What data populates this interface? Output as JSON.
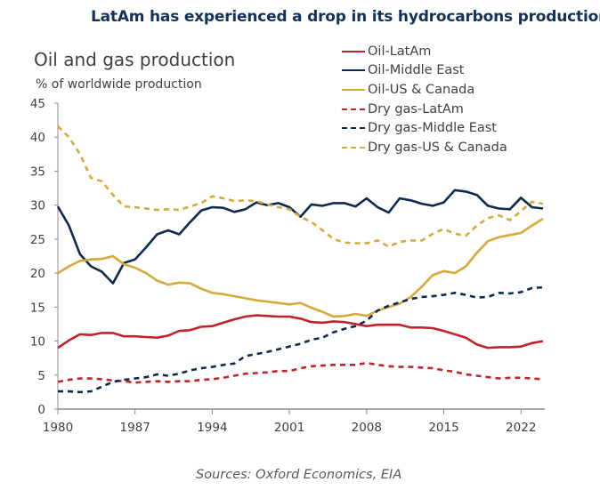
{
  "headline": "LatAm has experienced a drop in its hydrocarbons production",
  "source": "Sources: Oxford Economics, EIA",
  "chart_data": {
    "type": "line",
    "title": "Oil and gas production",
    "ylabel": "% of worldwide production",
    "xlabel": "",
    "xlim": [
      1980,
      2024
    ],
    "ylim": [
      0,
      45
    ],
    "x_ticks": [
      "1980",
      "1987",
      "1994",
      "2001",
      "2008",
      "2015",
      "2022"
    ],
    "y_ticks": [
      "0",
      "5",
      "10",
      "15",
      "20",
      "25",
      "30",
      "35",
      "40",
      "45"
    ],
    "grid": false,
    "legend_position": "top-right",
    "x_start": 1980,
    "series": [
      {
        "name": "Oil-LatAm",
        "color": "#c0232c",
        "dash": false,
        "values": [
          9,
          10.1,
          11,
          10.9,
          11.2,
          11.2,
          10.7,
          10.7,
          10.6,
          10.5,
          10.8,
          11.5,
          11.6,
          12.1,
          12.2,
          12.7,
          13.2,
          13.6,
          13.8,
          13.7,
          13.6,
          13.6,
          13.3,
          12.8,
          12.7,
          12.9,
          12.8,
          12.5,
          12.2,
          12.4,
          12.4,
          12.4,
          12,
          12,
          11.9,
          11.5,
          11,
          10.5,
          9.5,
          9,
          9.1,
          9.1,
          9.2,
          9.7,
          10
        ]
      },
      {
        "name": "Oil-Middle East",
        "color": "#0e2a50",
        "dash": false,
        "values": [
          29.8,
          27,
          22.8,
          21,
          20.2,
          18.5,
          21.5,
          22,
          23.8,
          25.7,
          26.3,
          25.7,
          27.5,
          29.2,
          29.7,
          29.6,
          29,
          29.4,
          30.4,
          30,
          30.3,
          29.7,
          28.3,
          30.1,
          29.9,
          30.3,
          30.3,
          29.8,
          31,
          29.7,
          28.9,
          31,
          30.7,
          30.2,
          29.9,
          30.4,
          32.2,
          32,
          31.5,
          29.9,
          29.5,
          29.4,
          31.1,
          29.7,
          29.5
        ]
      },
      {
        "name": "Oil-US & Canada",
        "color": "#d4aa3a",
        "dash": false,
        "values": [
          20,
          21,
          21.8,
          22,
          22.1,
          22.5,
          21.3,
          20.8,
          20,
          18.9,
          18.3,
          18.6,
          18.5,
          17.7,
          17.1,
          16.9,
          16.6,
          16.3,
          16,
          15.8,
          15.6,
          15.4,
          15.6,
          14.9,
          14.3,
          13.6,
          13.7,
          14,
          13.7,
          14.5,
          15,
          15.5,
          16.5,
          18,
          19.7,
          20.3,
          20,
          21,
          23,
          24.7,
          25.3,
          25.6,
          25.9,
          27,
          28
        ]
      },
      {
        "name": "Dry gas-LatAm",
        "color": "#c0232c",
        "dash": true,
        "values": [
          4,
          4.3,
          4.5,
          4.5,
          4.4,
          4.2,
          4.1,
          3.9,
          4,
          4.1,
          4,
          4.1,
          4.1,
          4.3,
          4.4,
          4.6,
          4.9,
          5.2,
          5.3,
          5.4,
          5.6,
          5.6,
          6,
          6.3,
          6.4,
          6.5,
          6.5,
          6.5,
          6.8,
          6.5,
          6.3,
          6.2,
          6.2,
          6.1,
          6,
          5.7,
          5.5,
          5.1,
          4.9,
          4.7,
          4.5,
          4.6,
          4.6,
          4.5,
          4.4
        ]
      },
      {
        "name": "Dry gas-Middle East",
        "color": "#0e2a50",
        "dash": true,
        "values": [
          2.6,
          2.6,
          2.5,
          2.6,
          3.3,
          4,
          4.3,
          4.5,
          4.7,
          5.1,
          4.9,
          5.2,
          5.7,
          6,
          6.2,
          6.5,
          6.7,
          7.8,
          8.1,
          8.4,
          8.8,
          9.2,
          9.6,
          10.2,
          10.5,
          11.3,
          11.8,
          12.2,
          13,
          14.5,
          15.2,
          15.7,
          16.2,
          16.5,
          16.6,
          16.8,
          17.1,
          16.8,
          16.4,
          16.5,
          17.1,
          17,
          17.2,
          17.8,
          17.9
        ]
      },
      {
        "name": "Dry gas-US & Canada",
        "color": "#d4aa3a",
        "dash": true,
        "values": [
          41.6,
          40,
          37.5,
          34,
          33.5,
          31.5,
          29.8,
          29.7,
          29.5,
          29.3,
          29.4,
          29.3,
          29.8,
          30.3,
          31.3,
          31,
          30.6,
          30.7,
          30.6,
          30.1,
          29.7,
          29.4,
          28.3,
          27.5,
          26.3,
          25,
          24.5,
          24.4,
          24.4,
          24.8,
          23.9,
          24.6,
          24.8,
          24.8,
          25.8,
          26.5,
          25.8,
          25.5,
          27,
          28.1,
          28.5,
          27.8,
          29.1,
          30.5,
          30.2
        ]
      }
    ]
  }
}
